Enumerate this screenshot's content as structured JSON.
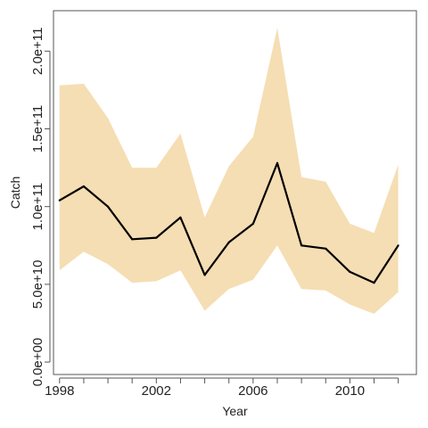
{
  "chart_data": {
    "type": "area",
    "title": "",
    "xlabel": "Year",
    "ylabel": "Catch",
    "x": [
      1998,
      1999,
      2000,
      2001,
      2002,
      2003,
      2004,
      2005,
      2006,
      2007,
      2008,
      2009,
      2010,
      2011,
      2012
    ],
    "series": [
      {
        "values": [
          104000000000.0,
          113000000000.0,
          100000000000.0,
          79000000000.0,
          80000000000.0,
          93000000000.0,
          56000000000.0,
          77000000000.0,
          89000000000.0,
          128000000000.0,
          75000000000.0,
          73000000000.0,
          58000000000.0,
          51000000000.0,
          75000000000.0
        ],
        "lower": [
          59000000000.0,
          71000000000.0,
          63000000000.0,
          51000000000.0,
          52000000000.0,
          59000000000.0,
          33000000000.0,
          47000000000.0,
          53000000000.0,
          75000000000.0,
          47000000000.0,
          46000000000.0,
          37000000000.0,
          31000000000.0,
          45000000000.0
        ],
        "upper": [
          178000000000.0,
          179000000000.0,
          157000000000.0,
          125000000000.0,
          125000000000.0,
          147000000000.0,
          93000000000.0,
          126000000000.0,
          145000000000.0,
          215000000000.0,
          119000000000.0,
          116000000000.0,
          89000000000.0,
          83000000000.0,
          127000000000.0
        ]
      }
    ],
    "xlim": [
      1997.75,
      2012.75
    ],
    "ylim": [
      -8000000000.0,
      226000000000.0
    ],
    "x_ticks": [
      1998,
      1999,
      2000,
      2001,
      2002,
      2003,
      2004,
      2005,
      2006,
      2007,
      2008,
      2009,
      2010,
      2011,
      2012
    ],
    "x_tick_labels": [
      "1998",
      "2002",
      "2006",
      "2010"
    ],
    "x_tick_label_values": [
      1998,
      2002,
      2006,
      2010
    ],
    "y_ticks": [
      0,
      50000000000.0,
      100000000000.0,
      150000000000.0,
      200000000000.0
    ],
    "y_tick_labels": [
      "0.0e+00",
      "5.0e+10",
      "1.0e+11",
      "1.5e+11",
      "2.0e+11"
    ],
    "colors": {
      "band": "#F5DEB3",
      "line": "#000000",
      "axis": "#555555"
    },
    "grid": false,
    "legend": "none"
  }
}
